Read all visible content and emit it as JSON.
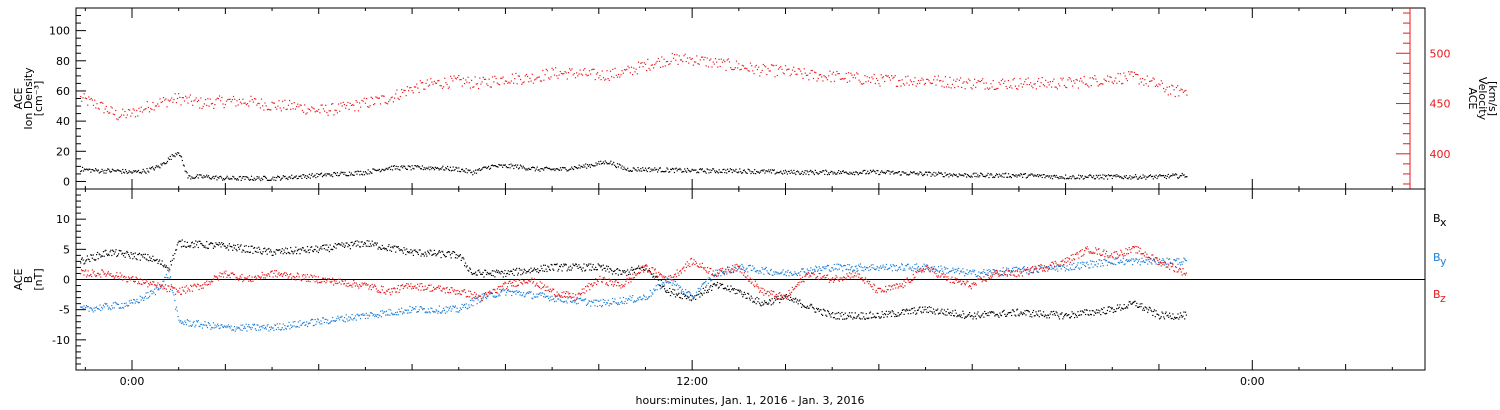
{
  "chart_data": [
    {
      "type": "scatter",
      "title": "",
      "ylabel_left": [
        "ACE",
        "Ion Density",
        "[cm⁻³]"
      ],
      "ylabel_right": [
        "ACE",
        "Velocity",
        "[km/s]"
      ],
      "x_unit": "hours relative to 0:00 Jan. 2, 2016",
      "xlim": [
        -1.2,
        27.7
      ],
      "ylim_left": [
        -5,
        115
      ],
      "yticks_left": [
        0,
        20,
        40,
        60,
        80,
        100
      ],
      "ylim_right": [
        365,
        545
      ],
      "yticks_right": [
        400,
        450,
        500
      ],
      "series": [
        {
          "role": "density",
          "axis": "left",
          "color": "#000000",
          "points": [
            [
              -1.1,
              8
            ],
            [
              -0.7,
              7
            ],
            [
              -0.3,
              7
            ],
            [
              0,
              6
            ],
            [
              0.3,
              7
            ],
            [
              0.6,
              10
            ],
            [
              0.8,
              15
            ],
            [
              1.0,
              20
            ],
            [
              1.2,
              3
            ],
            [
              1.6,
              3
            ],
            [
              2.0,
              2
            ],
            [
              2.5,
              2
            ],
            [
              3.0,
              2
            ],
            [
              3.5,
              3
            ],
            [
              4.0,
              4
            ],
            [
              4.5,
              5
            ],
            [
              5.0,
              6
            ],
            [
              5.5,
              9
            ],
            [
              6.0,
              9
            ],
            [
              6.5,
              9
            ],
            [
              7.0,
              8
            ],
            [
              7.3,
              6
            ],
            [
              7.7,
              10
            ],
            [
              8.2,
              10
            ],
            [
              8.7,
              8
            ],
            [
              9.2,
              8
            ],
            [
              9.7,
              10
            ],
            [
              10.2,
              13
            ],
            [
              10.6,
              8
            ],
            [
              11.0,
              8
            ],
            [
              12.0,
              7
            ],
            [
              13.0,
              7
            ],
            [
              14.0,
              6
            ],
            [
              15.0,
              6
            ],
            [
              16.0,
              6
            ],
            [
              17.0,
              5
            ],
            [
              18.0,
              4
            ],
            [
              19.0,
              4
            ],
            [
              20.0,
              3
            ],
            [
              21.0,
              3
            ],
            [
              22.0,
              3
            ],
            [
              22.6,
              4
            ]
          ]
        },
        {
          "role": "velocity",
          "axis": "right",
          "color": "#e8191c",
          "points": [
            [
              -1.1,
              455
            ],
            [
              -0.7,
              448
            ],
            [
              -0.3,
              438
            ],
            [
              0,
              440
            ],
            [
              0.5,
              450
            ],
            [
              1.0,
              455
            ],
            [
              1.5,
              450
            ],
            [
              2.0,
              452
            ],
            [
              2.5,
              452
            ],
            [
              3.0,
              448
            ],
            [
              3.5,
              447
            ],
            [
              4.0,
              443
            ],
            [
              4.5,
              445
            ],
            [
              5.0,
              450
            ],
            [
              5.5,
              455
            ],
            [
              6.0,
              465
            ],
            [
              6.5,
              470
            ],
            [
              7.0,
              472
            ],
            [
              7.5,
              470
            ],
            [
              8.0,
              475
            ],
            [
              8.5,
              475
            ],
            [
              9.0,
              480
            ],
            [
              9.5,
              480
            ],
            [
              10.0,
              478
            ],
            [
              10.5,
              480
            ],
            [
              11.0,
              488
            ],
            [
              11.5,
              494
            ],
            [
              12.0,
              494
            ],
            [
              12.5,
              490
            ],
            [
              13.0,
              487
            ],
            [
              13.5,
              483
            ],
            [
              14.0,
              482
            ],
            [
              14.5,
              478
            ],
            [
              15.0,
              477
            ],
            [
              15.5,
              475
            ],
            [
              16.0,
              473
            ],
            [
              17.0,
              473
            ],
            [
              18.0,
              470
            ],
            [
              19.0,
              470
            ],
            [
              20.0,
              470
            ],
            [
              20.5,
              472
            ],
            [
              21.0,
              475
            ],
            [
              21.5,
              476
            ],
            [
              22.0,
              468
            ],
            [
              22.3,
              462
            ],
            [
              22.6,
              463
            ]
          ]
        }
      ]
    },
    {
      "type": "line",
      "title": "",
      "ylabel": [
        "ACE",
        "B",
        "[nT]"
      ],
      "x_unit": "hours relative to 0:00 Jan. 2, 2016",
      "xlim": [
        -1.2,
        27.7
      ],
      "ylim": [
        -15,
        15
      ],
      "yticks": [
        -10,
        -5,
        0,
        5,
        10
      ],
      "zero_line": true,
      "series": [
        {
          "name": "Bx",
          "legend_main": "B",
          "legend_sub": "x",
          "color": "#000000",
          "points": [
            [
              -1.1,
              3
            ],
            [
              -0.5,
              4.5
            ],
            [
              0,
              4
            ],
            [
              0.4,
              3.5
            ],
            [
              0.8,
              2
            ],
            [
              1.0,
              6
            ],
            [
              2.0,
              5.5
            ],
            [
              3.0,
              4.5
            ],
            [
              4.0,
              5
            ],
            [
              5.0,
              6
            ],
            [
              6.0,
              4.5
            ],
            [
              7.0,
              4
            ],
            [
              7.3,
              1
            ],
            [
              8.0,
              1
            ],
            [
              9.0,
              2
            ],
            [
              10.0,
              2
            ],
            [
              10.5,
              1
            ],
            [
              11.0,
              2
            ],
            [
              11.5,
              -2
            ],
            [
              12.0,
              -3
            ],
            [
              12.5,
              -1
            ],
            [
              13.0,
              -2
            ],
            [
              13.5,
              -4
            ],
            [
              14.0,
              -3
            ],
            [
              15.0,
              -6
            ],
            [
              16.0,
              -6
            ],
            [
              17.0,
              -5
            ],
            [
              18.0,
              -6
            ],
            [
              19.0,
              -5.5
            ],
            [
              20.0,
              -6
            ],
            [
              21.0,
              -5
            ],
            [
              21.5,
              -4
            ],
            [
              22.0,
              -6
            ],
            [
              22.6,
              -6
            ]
          ]
        },
        {
          "name": "By",
          "legend_main": "B",
          "legend_sub": "y",
          "color": "#1f7fd6",
          "points": [
            [
              -1.1,
              -5
            ],
            [
              -0.5,
              -4.5
            ],
            [
              0,
              -4
            ],
            [
              0.5,
              -2
            ],
            [
              0.8,
              1
            ],
            [
              1.0,
              -7
            ],
            [
              2.0,
              -8
            ],
            [
              3.0,
              -8
            ],
            [
              4.0,
              -7
            ],
            [
              5.0,
              -6
            ],
            [
              6.0,
              -5
            ],
            [
              7.0,
              -5
            ],
            [
              7.5,
              -3
            ],
            [
              8.0,
              -2
            ],
            [
              9.0,
              -3
            ],
            [
              10.0,
              -4
            ],
            [
              11.0,
              -3
            ],
            [
              11.5,
              0
            ],
            [
              12.0,
              -3
            ],
            [
              12.5,
              1
            ],
            [
              13.0,
              2
            ],
            [
              14.0,
              1
            ],
            [
              15.0,
              2
            ],
            [
              16.0,
              2
            ],
            [
              17.0,
              2
            ],
            [
              18.0,
              1
            ],
            [
              19.0,
              1.5
            ],
            [
              20.0,
              2
            ],
            [
              21.0,
              3
            ],
            [
              22.0,
              3
            ],
            [
              22.6,
              3
            ]
          ]
        },
        {
          "name": "Bz",
          "legend_main": "B",
          "legend_sub": "z",
          "color": "#e8191c",
          "points": [
            [
              -1.1,
              1
            ],
            [
              -0.5,
              1
            ],
            [
              0,
              0
            ],
            [
              0.5,
              -1
            ],
            [
              1.0,
              -2
            ],
            [
              1.5,
              -1
            ],
            [
              2.0,
              1
            ],
            [
              2.5,
              0
            ],
            [
              3.0,
              1
            ],
            [
              4.0,
              0
            ],
            [
              5.0,
              -1
            ],
            [
              5.5,
              -2
            ],
            [
              6.0,
              -1
            ],
            [
              7.0,
              -2
            ],
            [
              7.5,
              -3
            ],
            [
              8.0,
              -1
            ],
            [
              8.5,
              0
            ],
            [
              9.0,
              -2
            ],
            [
              9.5,
              -3
            ],
            [
              10.0,
              0
            ],
            [
              10.5,
              -1
            ],
            [
              11.0,
              2
            ],
            [
              11.5,
              0
            ],
            [
              12.0,
              3
            ],
            [
              12.5,
              1
            ],
            [
              13.0,
              2
            ],
            [
              13.5,
              -2
            ],
            [
              14.0,
              -3
            ],
            [
              14.5,
              1
            ],
            [
              15.0,
              0
            ],
            [
              15.5,
              1
            ],
            [
              16.0,
              -2
            ],
            [
              16.5,
              -1
            ],
            [
              17.0,
              2
            ],
            [
              17.5,
              0
            ],
            [
              18.0,
              -1
            ],
            [
              18.5,
              1
            ],
            [
              19.0,
              1
            ],
            [
              19.5,
              2
            ],
            [
              20.0,
              3
            ],
            [
              20.5,
              5
            ],
            [
              21.0,
              4
            ],
            [
              21.5,
              5
            ],
            [
              22.0,
              3
            ],
            [
              22.6,
              1
            ]
          ]
        }
      ]
    }
  ],
  "xaxis": {
    "ticks": [
      {
        "hours": 0,
        "label": "0:00"
      },
      {
        "hours": 12,
        "label": "12:00"
      },
      {
        "hours": 24,
        "label": "0:00"
      }
    ],
    "label": "hours:minutes, Jan.  1, 2016 - Jan.  3, 2016"
  },
  "colors": {
    "axis": "#000000",
    "velocity_axis": "#e8191c",
    "background": "#ffffff"
  }
}
